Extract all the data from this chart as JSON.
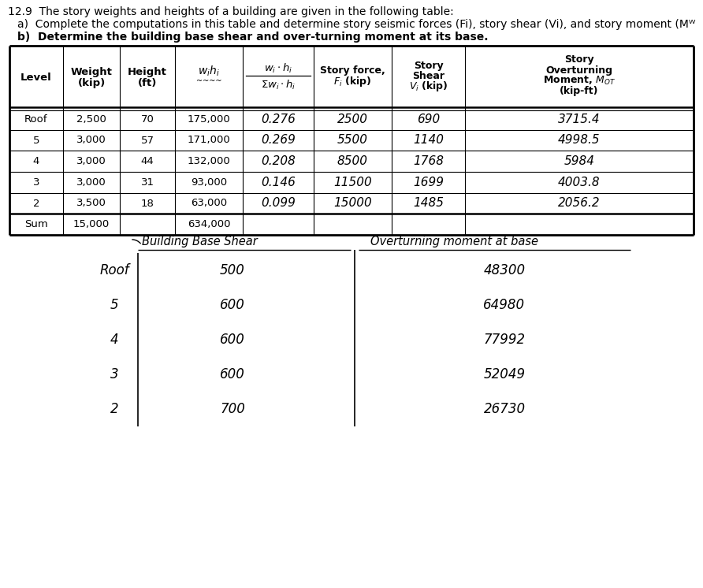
{
  "title_line1": "12.9  The story weights and heights of a building are given in the following table:",
  "title_line2a": "a)  Complete the computations in this table and determine story seismic forces (Fi), story shear (Vi), and story moment (Mᵂ",
  "title_line2b": "b)  Determine the building base shear and over-turning moment at its base.",
  "rows": [
    [
      "Roof",
      "2,500",
      "70",
      "175,000",
      "0.276",
      "2500",
      "690",
      "3715.4"
    ],
    [
      "5",
      "3,000",
      "57",
      "171,000",
      "0.269",
      "5500",
      "1140",
      "4998.5"
    ],
    [
      "4",
      "3,000",
      "44",
      "132,000",
      "0.208",
      "8500",
      "1768",
      "5984"
    ],
    [
      "3",
      "3,000",
      "31",
      "93,000",
      "0.146",
      "11500",
      "1699",
      "4003.8"
    ],
    [
      "2",
      "3,500",
      "18",
      "63,000",
      "0.099",
      "15000",
      "1485",
      "2056.2"
    ],
    [
      "Sum",
      "15,000",
      "",
      "634,000",
      "",
      "",
      "",
      ""
    ]
  ],
  "bottom_levels": [
    "Roof",
    "5",
    "4",
    "3",
    "2"
  ],
  "building_base_shear": [
    "500",
    "600",
    "600",
    "600",
    "700"
  ],
  "overturning_moment_base": [
    "48300",
    "64980",
    "77992",
    "52049",
    "26730"
  ],
  "font_color": "#000000",
  "bg_color": "#ffffff"
}
